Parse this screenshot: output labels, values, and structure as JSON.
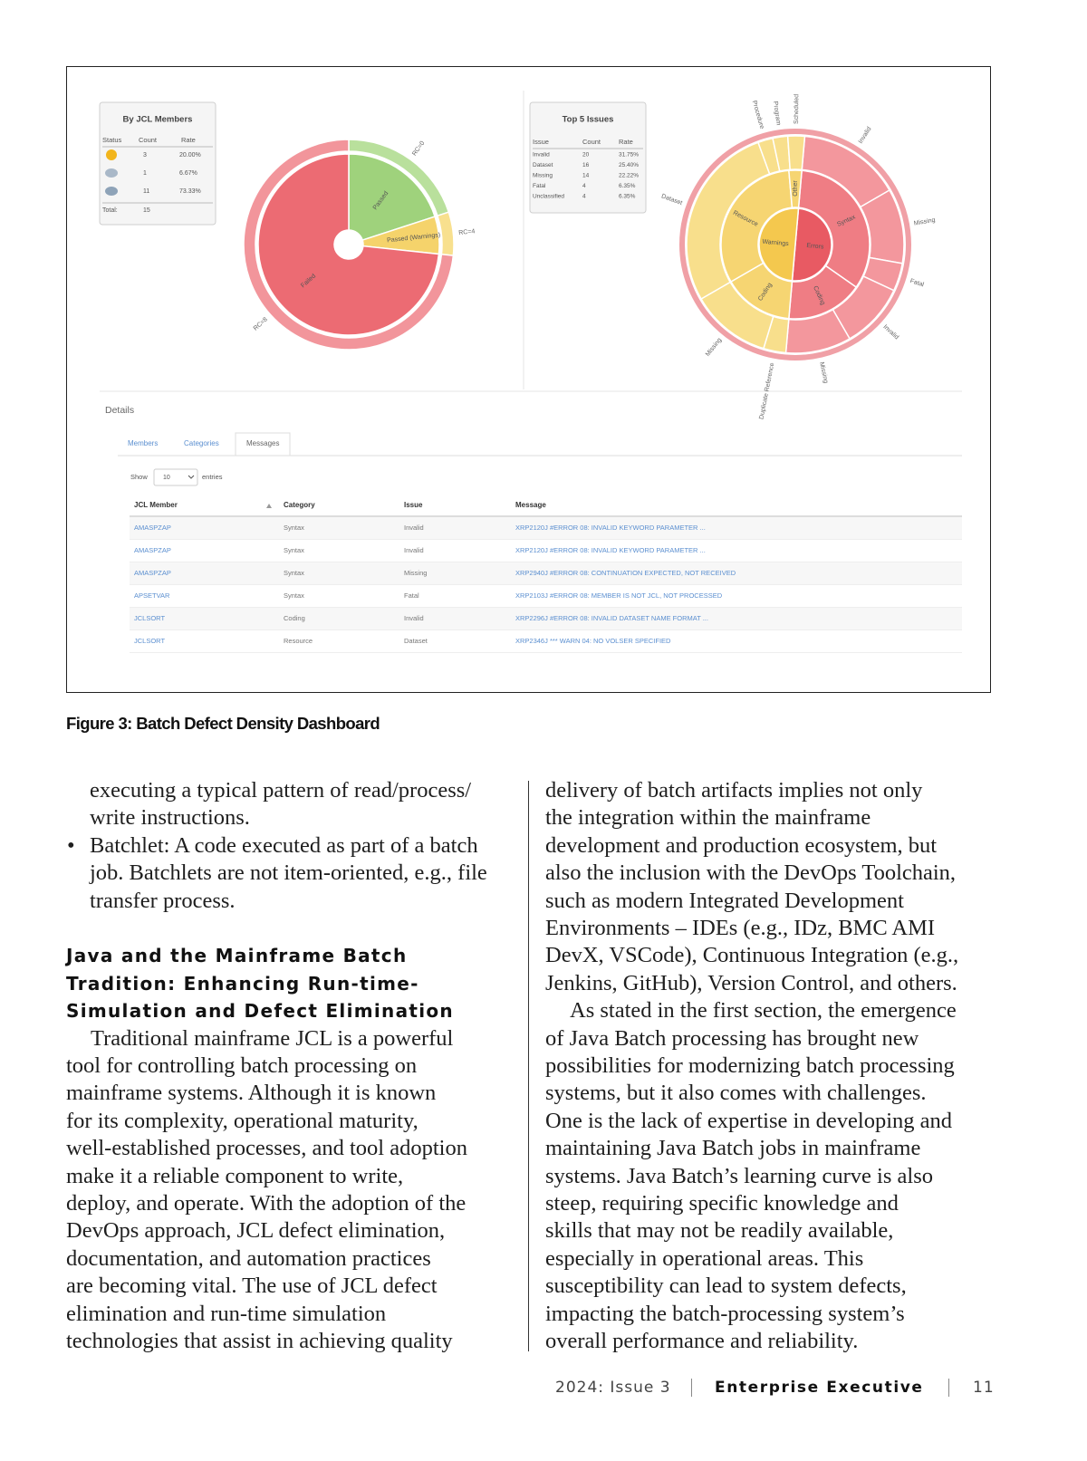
{
  "figure": {
    "dashboard": {
      "by_jcl_members": {
        "title": "By JCL Members",
        "headers": [
          "Status",
          "Count",
          "Rate"
        ],
        "rows": [
          {
            "count": "3",
            "rate": "20.00%"
          },
          {
            "count": "1",
            "rate": "6.67%"
          },
          {
            "count": "11",
            "rate": "73.33%"
          }
        ],
        "total": [
          "Total:",
          "15"
        ]
      },
      "left_pie": {
        "segments": [
          {
            "label": "Passed",
            "ring_label": "RC=0",
            "value": 3,
            "color": "#9fd27c",
            "ring_color": "#b9e09c"
          },
          {
            "label": "Passed (Warnings)",
            "ring_label": "RC=4",
            "value": 1,
            "color": "#f5d36b",
            "ring_color": "#f8e08e"
          },
          {
            "label": "Failed",
            "ring_label": "RC=8",
            "value": 11,
            "color": "#ec6b73",
            "ring_color": "#f2959b"
          }
        ]
      },
      "top_issues": {
        "title": "Top 5 Issues",
        "headers": [
          "Issue",
          "Count",
          "Rate"
        ],
        "rows": [
          [
            "Invalid",
            "20",
            "31.75%"
          ],
          [
            "Dataset",
            "16",
            "25.40%"
          ],
          [
            "Missing",
            "14",
            "22.22%"
          ],
          [
            "Fatal",
            "4",
            "6.35%"
          ],
          [
            "Unclassified",
            "4",
            "6.35%"
          ]
        ]
      },
      "sunburst": {
        "rings": [
          {
            "segments": [
              {
                "label": "Errors",
                "value": 180,
                "color": "#e85a63"
              },
              {
                "label": "Warnings",
                "value": 180,
                "color": "#f4c84e"
              }
            ]
          },
          {
            "segments": [
              {
                "label": "Syntax",
                "value": 120,
                "color": "#ef7d84"
              },
              {
                "label": "Coding",
                "value": 60,
                "color": "#ef7d84"
              },
              {
                "label": "Coding",
                "value": 55,
                "color": "#f6d572"
              },
              {
                "label": "Resource",
                "value": 115,
                "color": "#f6d572"
              },
              {
                "label": "Other",
                "value": 10,
                "color": "#f6d572"
              }
            ]
          },
          {
            "segments": [
              {
                "label": "Invalid",
                "value": 55,
                "color": "#f3979d"
              },
              {
                "label": "Missing",
                "value": 40,
                "color": "#f3979d"
              },
              {
                "label": "Fatal",
                "value": 15,
                "color": "#f3979d"
              },
              {
                "label": "Invalid",
                "value": 35,
                "color": "#f3979d"
              },
              {
                "label": "Missing",
                "value": 35,
                "color": "#f3979d"
              },
              {
                "label": "Duplicate Reference",
                "value": 12,
                "color": "#f8df8c"
              },
              {
                "label": "Missing",
                "value": 43,
                "color": "#f8df8c"
              },
              {
                "label": "Dataset",
                "value": 100,
                "color": "#f8df8c"
              },
              {
                "label": "Procedure",
                "value": 8,
                "color": "#f8df8c"
              },
              {
                "label": "Program",
                "value": 8,
                "color": "#f8df8c"
              },
              {
                "label": "Scheduled",
                "value": 9,
                "color": "#f8df8c"
              }
            ]
          }
        ]
      },
      "details": {
        "title": "Details",
        "tabs": [
          "Members",
          "Categories",
          "Messages"
        ],
        "show": "Show",
        "page_size": "10",
        "entries": "entries",
        "headers": [
          "JCL Member",
          "Category",
          "Issue",
          "Message"
        ],
        "rows": [
          [
            "AMASPZAP",
            "Syntax",
            "Invalid",
            "XRP2120J #ERROR 08: INVALID KEYWORD PARAMETER ..."
          ],
          [
            "AMASPZAP",
            "Syntax",
            "Invalid",
            "XRP2120J #ERROR 08: INVALID KEYWORD PARAMETER ..."
          ],
          [
            "AMASPZAP",
            "Syntax",
            "Missing",
            "XRP2940J #ERROR 08: CONTINUATION EXPECTED, NOT RECEIVED"
          ],
          [
            "APSETVAR",
            "Syntax",
            "Fatal",
            "XRP2103J #ERROR 08: MEMBER IS NOT JCL, NOT PROCESSED"
          ],
          [
            "JCLSORT",
            "Coding",
            "Invalid",
            "XRP2296J #ERROR 08: INVALID DATASET NAME FORMAT ..."
          ],
          [
            "JCLSORT",
            "Resource",
            "Dataset",
            "XRP2346J *** WARN 04: NO VOLSER SPECIFIED"
          ]
        ]
      }
    },
    "caption": "Figure 3: Batch Defect Density Dashboard"
  },
  "article": {
    "left_column": {
      "list_continuation": [
        "executing a typical pattern of read/process/",
        "write instructions."
      ],
      "bullet_item": [
        "Batchlet: A code executed as part of a batch",
        "job. Batchlets are not item-oriented, e.g., file",
        "transfer process."
      ],
      "heading": [
        "Java and the Mainframe Batch",
        "Tradition: Enhancing Run-time-",
        "Simulation and Defect Elimination"
      ],
      "paragraph": [
        "Traditional mainframe JCL is a powerful",
        "tool for controlling batch processing on",
        "mainframe systems. Although it is known",
        "for its complexity, operational maturity,",
        "well-established processes, and tool adoption",
        "make it a reliable component to write,",
        "deploy, and operate. With the adoption of the",
        "DevOps approach, JCL defect elimination,",
        "documentation, and automation practices",
        "are becoming vital. The use of JCL defect",
        "elimination and run-time simulation",
        "technologies that assist in achieving quality"
      ]
    },
    "right_column": {
      "paragraph_continuation": [
        "delivery of batch artifacts implies not only",
        "the integration within the mainframe",
        "development and production ecosystem, but",
        "also the inclusion with the DevOps Toolchain,",
        "such as modern Integrated Development",
        "Environments – IDEs (e.g., IDz, BMC AMI",
        "DevX, VSCode), Continuous Integration (e.g.,",
        "Jenkins, GitHub), Version Control, and others."
      ],
      "paragraph": [
        "As stated in the first section, the emergence",
        "of Java Batch processing has brought new",
        "possibilities for modernizing batch processing",
        "systems, but it also comes with challenges.",
        "One is the lack of expertise in developing and",
        "maintaining Java Batch jobs in mainframe",
        "systems. Java Batch’s learning curve is also",
        "steep, requiring specific knowledge and",
        "skills that may not be readily available,",
        "especially in operational areas. This",
        "susceptibility can lead to system defects,",
        "impacting the batch-processing system’s",
        "overall performance and reliability."
      ]
    }
  },
  "footer": {
    "issue": "2024: Issue 3",
    "magazine": "Enterprise Executive",
    "page_number": "11"
  }
}
